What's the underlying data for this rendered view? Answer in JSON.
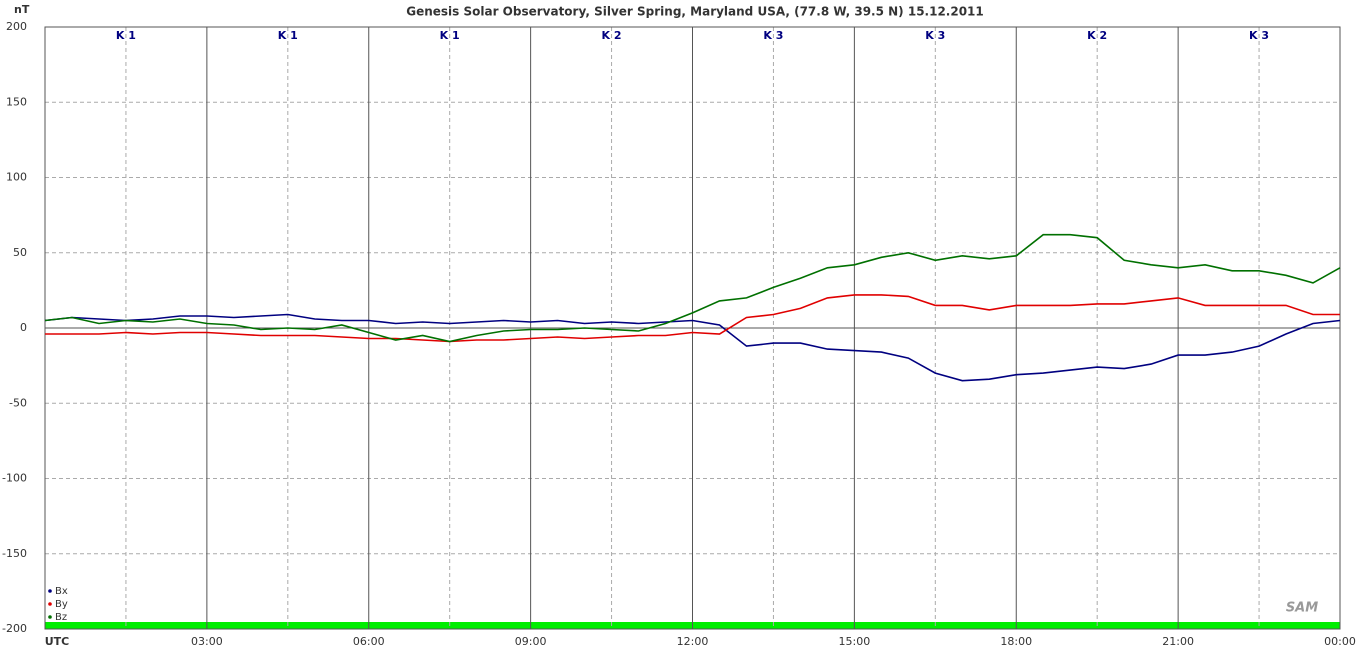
{
  "chart_data": {
    "type": "line",
    "title": "Genesis Solar Observatory, Silver Spring, Maryland USA, (77.8 W, 39.5 N)  15.12.2011",
    "y_label": "nT",
    "logo": "SAM",
    "k_index": [
      "K 1",
      "K 1",
      "K 1",
      "K 2",
      "K 3",
      "K 3",
      "K 2",
      "K 3"
    ],
    "x": [
      0,
      0.5,
      1,
      1.5,
      2,
      2.5,
      3,
      3.5,
      4,
      4.5,
      5,
      5.5,
      6,
      6.5,
      7,
      7.5,
      8,
      8.5,
      9,
      9.5,
      10,
      10.5,
      11,
      11.5,
      12,
      12.5,
      13,
      13.5,
      14,
      14.5,
      15,
      15.5,
      16,
      16.5,
      17,
      17.5,
      18,
      18.5,
      19,
      19.5,
      20,
      20.5,
      21,
      21.5,
      22,
      22.5,
      23,
      23.5,
      24
    ],
    "series": [
      {
        "name": "Bx",
        "color": "#000080",
        "values": [
          5,
          7,
          6,
          5,
          6,
          8,
          8,
          7,
          8,
          9,
          6,
          5,
          5,
          3,
          4,
          3,
          4,
          5,
          4,
          5,
          3,
          4,
          3,
          4,
          5,
          2,
          -12,
          -10,
          -10,
          -14,
          -15,
          -16,
          -20,
          -30,
          -35,
          -34,
          -31,
          -30,
          -28,
          -26,
          -27,
          -24,
          -18,
          -18,
          -16,
          -12,
          -4,
          3,
          5
        ]
      },
      {
        "name": "By",
        "color": "#e00000",
        "values": [
          -4,
          -4,
          -4,
          -3,
          -4,
          -3,
          -3,
          -4,
          -5,
          -5,
          -5,
          -6,
          -7,
          -7,
          -8,
          -9,
          -8,
          -8,
          -7,
          -6,
          -7,
          -6,
          -5,
          -5,
          -3,
          -4,
          7,
          9,
          13,
          20,
          22,
          22,
          21,
          15,
          15,
          12,
          15,
          15,
          15,
          16,
          16,
          18,
          20,
          15,
          15,
          15,
          15,
          9,
          9
        ]
      },
      {
        "name": "Bz",
        "color": "#007000",
        "values": [
          5,
          7,
          3,
          5,
          4,
          6,
          3,
          2,
          -1,
          0,
          -1,
          2,
          -3,
          -8,
          -5,
          -9,
          -5,
          -2,
          -1,
          -1,
          0,
          -1,
          -2,
          3,
          10,
          18,
          20,
          27,
          33,
          40,
          42,
          47,
          50,
          45,
          48,
          46,
          48,
          62,
          62,
          60,
          45,
          42,
          40,
          42,
          38,
          38,
          35,
          30,
          40
        ]
      }
    ],
    "xlim": [
      0,
      24
    ],
    "xticks": [
      {
        "value": 0,
        "label": "UTC"
      },
      {
        "value": 3,
        "label": "03:00"
      },
      {
        "value": 6,
        "label": "06:00"
      },
      {
        "value": 9,
        "label": "09:00"
      },
      {
        "value": 12,
        "label": "12:00"
      },
      {
        "value": 15,
        "label": "15:00"
      },
      {
        "value": 18,
        "label": "18:00"
      },
      {
        "value": 21,
        "label": "21:00"
      },
      {
        "value": 24,
        "label": "00:00"
      }
    ],
    "ylim": [
      -200,
      200
    ],
    "yticks": [
      -200,
      -150,
      -100,
      -50,
      0,
      50,
      100,
      150,
      200
    ],
    "grid": true,
    "legend": "lower-left"
  }
}
